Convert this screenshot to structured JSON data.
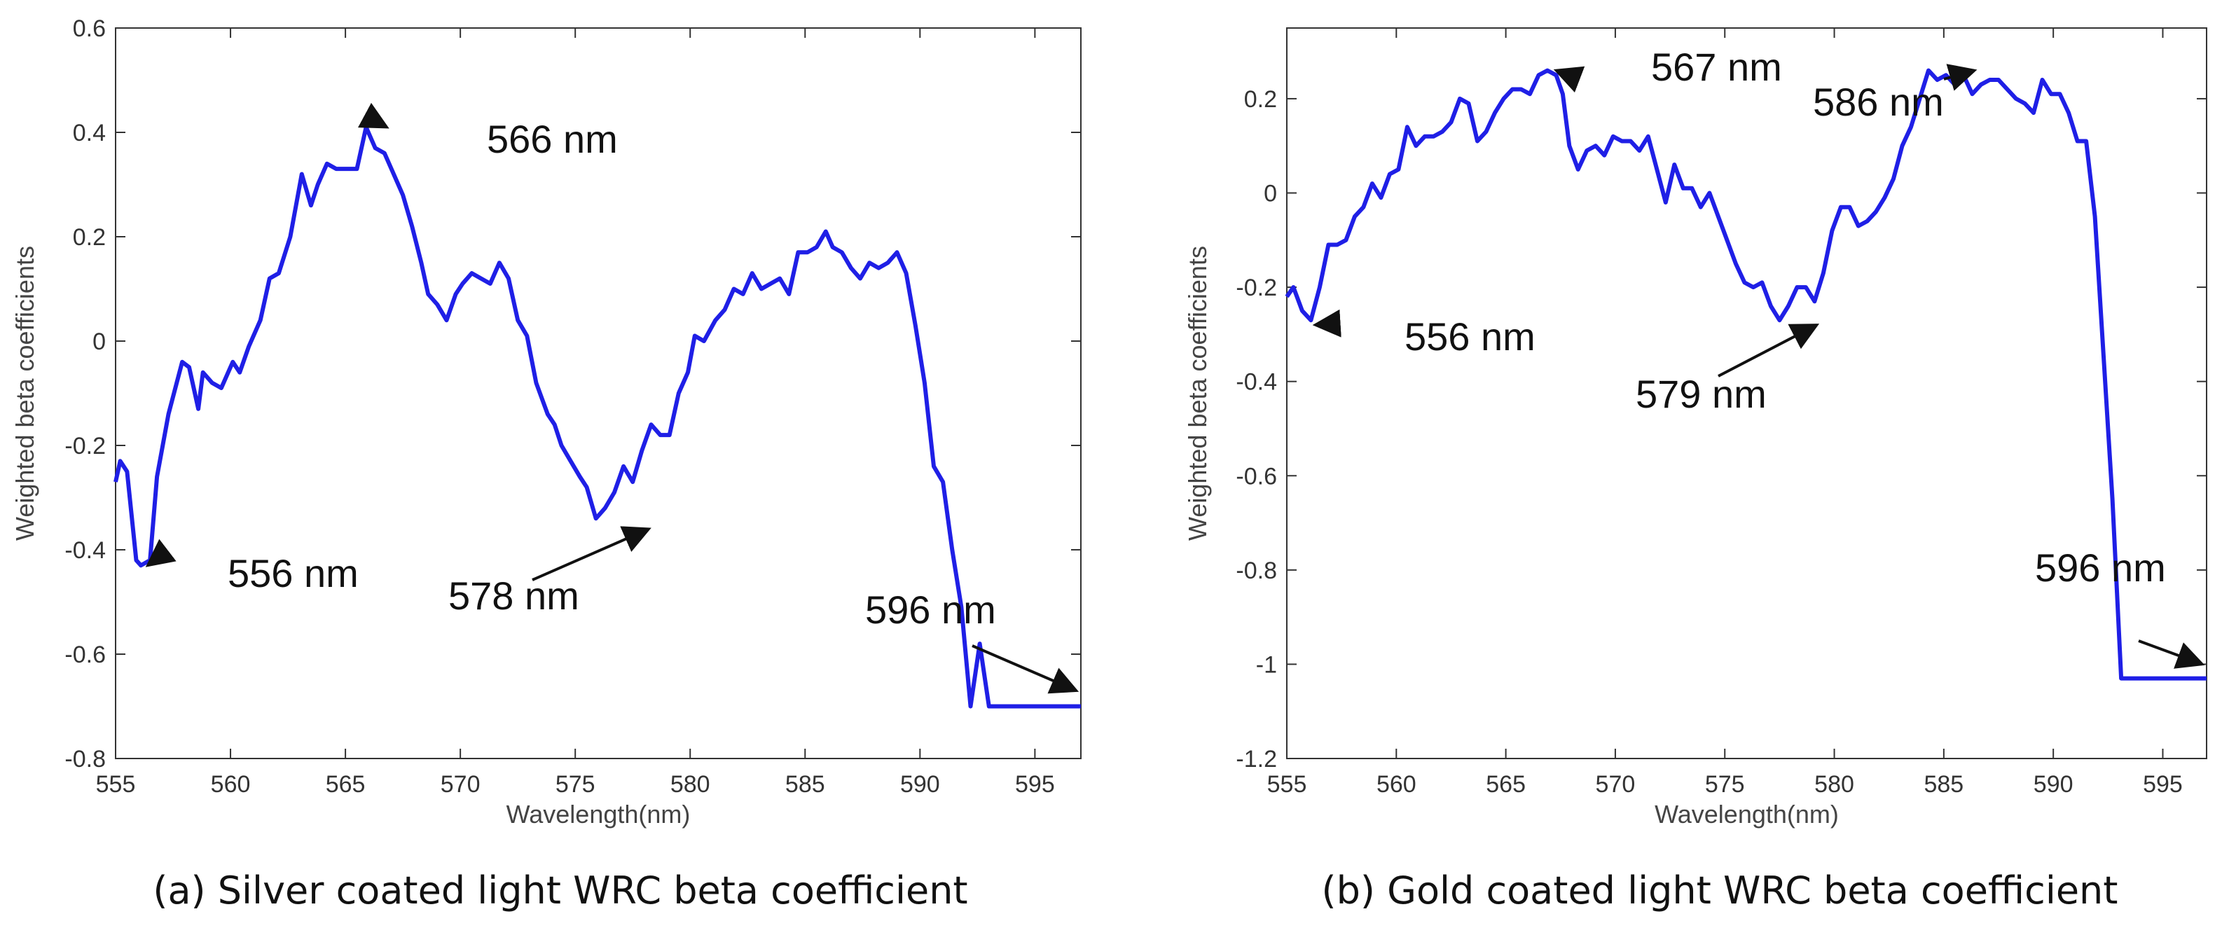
{
  "colors": {
    "line": "#1f1fe6",
    "axis": "#333333",
    "arrow": "#111111",
    "background": "#ffffff"
  },
  "chart_data": [
    {
      "type": "line",
      "caption": "(a) Silver coated light WRC beta coefficient",
      "xlabel": "Wavelength(nm)",
      "ylabel": "Weighted beta coefficients",
      "xlim": [
        555,
        597
      ],
      "ylim": [
        -0.8,
        0.6
      ],
      "xticks": [
        555,
        560,
        565,
        570,
        575,
        580,
        585,
        590,
        595
      ],
      "xtick_labels": [
        "555",
        "560",
        "565",
        "570",
        "575",
        "580",
        "585",
        "590",
        "595"
      ],
      "yticks": [
        -0.8,
        -0.6,
        -0.4,
        -0.2,
        0,
        0.2,
        0.4,
        0.6
      ],
      "ytick_labels": [
        "-0.8",
        "-0.6",
        "-0.4",
        "-0.2",
        "0",
        "0.2",
        "0.4",
        "0.6"
      ],
      "grid": false,
      "series": [
        {
          "name": "Silver coated",
          "x": [
            555,
            555.2,
            555.5,
            555.9,
            556.1,
            556.5,
            556.8,
            557.3,
            557.9,
            558.2,
            558.6,
            558.8,
            559.2,
            559.6,
            560.1,
            560.4,
            560.8,
            561.3,
            561.7,
            562.1,
            562.6,
            563.1,
            563.5,
            563.8,
            564.2,
            564.6,
            565.1,
            565.5,
            565.9,
            566.3,
            566.7,
            567.1,
            567.5,
            567.9,
            568.3,
            568.6,
            569.0,
            569.4,
            569.8,
            570.1,
            570.5,
            570.9,
            571.3,
            571.7,
            572.1,
            572.5,
            572.9,
            573.3,
            573.8,
            574.1,
            574.4,
            574.8,
            575.2,
            575.5,
            575.9,
            576.3,
            576.7,
            577.1,
            577.5,
            577.9,
            578.3,
            578.7,
            579.1,
            579.5,
            579.9,
            580.2,
            580.6,
            581.1,
            581.5,
            581.9,
            582.3,
            582.7,
            583.1,
            583.5,
            583.9,
            584.3,
            584.7,
            585.1,
            585.5,
            585.9,
            586.2,
            586.6,
            587.0,
            587.4,
            587.8,
            588.2,
            588.6,
            589.0,
            589.4,
            589.8,
            590.2,
            590.6,
            591.0,
            591.4,
            591.8,
            592.2,
            592.6,
            593.0,
            593.4,
            593.8,
            594.2,
            594.6,
            595.0,
            595.4,
            595.8,
            596.2,
            596.6,
            597.0
          ],
          "y": [
            -0.27,
            -0.23,
            -0.25,
            -0.42,
            -0.43,
            -0.42,
            -0.26,
            -0.14,
            -0.04,
            -0.05,
            -0.13,
            -0.06,
            -0.08,
            -0.09,
            -0.04,
            -0.06,
            -0.01,
            0.04,
            0.12,
            0.13,
            0.2,
            0.32,
            0.26,
            0.3,
            0.34,
            0.33,
            0.33,
            0.33,
            0.41,
            0.37,
            0.36,
            0.32,
            0.28,
            0.22,
            0.15,
            0.09,
            0.07,
            0.04,
            0.09,
            0.11,
            0.13,
            0.12,
            0.11,
            0.15,
            0.12,
            0.04,
            0.01,
            -0.08,
            -0.14,
            -0.16,
            -0.2,
            -0.23,
            -0.26,
            -0.28,
            -0.34,
            -0.32,
            -0.29,
            -0.24,
            -0.27,
            -0.21,
            -0.16,
            -0.18,
            -0.18,
            -0.1,
            -0.06,
            0.01,
            0.0,
            0.04,
            0.06,
            0.1,
            0.09,
            0.13,
            0.1,
            0.11,
            0.12,
            0.09,
            0.17,
            0.17,
            0.18,
            0.21,
            0.18,
            0.17,
            0.14,
            0.12,
            0.15,
            0.14,
            0.15,
            0.17,
            0.13,
            0.03,
            -0.08,
            -0.24,
            -0.27,
            -0.4,
            -0.51,
            -0.7,
            -0.58,
            -0.7,
            -0.7,
            -0.7,
            -0.7,
            -0.7,
            -0.7,
            -0.7,
            -0.7,
            -0.7,
            -0.7,
            -0.7
          ]
        }
      ],
      "annotations": [
        {
          "text": "566 nm",
          "x": 566.8,
          "y": 0.41
        },
        {
          "text": "556 nm",
          "x": 556.4,
          "y": -0.43
        },
        {
          "text": "578 nm",
          "x": 578.2,
          "y": -0.36
        },
        {
          "text": "596 nm",
          "x": 596.8,
          "y": -0.67
        }
      ]
    },
    {
      "type": "line",
      "caption": "(b) Gold coated light WRC beta coefficient",
      "xlabel": "Wavelength(nm)",
      "ylabel": "Weighted beta coefficients",
      "xlim": [
        555,
        597
      ],
      "ylim": [
        -1.2,
        0.35
      ],
      "xticks": [
        555,
        560,
        565,
        570,
        575,
        580,
        585,
        590,
        595
      ],
      "xtick_labels": [
        "555",
        "560",
        "565",
        "570",
        "575",
        "580",
        "585",
        "590",
        "595"
      ],
      "yticks": [
        -1.2,
        -1,
        -0.8,
        -0.6,
        -0.4,
        -0.2,
        0,
        0.2
      ],
      "ytick_labels": [
        "-1.2",
        "-1",
        "-0.8",
        "-0.6",
        "-0.4",
        "-0.2",
        "0",
        "0.2"
      ],
      "grid": false,
      "series": [
        {
          "name": "Gold coated",
          "x": [
            555,
            555.3,
            555.7,
            556.1,
            556.5,
            556.9,
            557.3,
            557.7,
            558.1,
            558.5,
            558.9,
            559.3,
            559.7,
            560.1,
            560.5,
            560.9,
            561.3,
            561.7,
            562.1,
            562.5,
            562.9,
            563.3,
            563.7,
            564.1,
            564.5,
            564.9,
            565.3,
            565.7,
            566.1,
            566.5,
            566.9,
            567.3,
            567.6,
            567.9,
            568.3,
            568.7,
            569.1,
            569.5,
            569.9,
            570.3,
            570.7,
            571.1,
            571.5,
            571.9,
            572.3,
            572.7,
            573.1,
            573.5,
            573.9,
            574.3,
            574.7,
            575.1,
            575.5,
            575.9,
            576.3,
            576.7,
            577.1,
            577.5,
            577.9,
            578.3,
            578.7,
            579.1,
            579.5,
            579.9,
            580.3,
            580.7,
            581.1,
            581.5,
            581.9,
            582.3,
            582.7,
            583.1,
            583.5,
            583.9,
            584.3,
            584.7,
            585.1,
            585.5,
            585.9,
            586.3,
            586.7,
            587.1,
            587.5,
            587.9,
            588.3,
            588.7,
            589.1,
            589.5,
            589.9,
            590.3,
            590.7,
            591.1,
            591.5,
            591.9,
            592.3,
            592.7,
            593.1,
            593.5,
            593.9,
            594.3,
            594.7,
            595.1,
            595.5,
            595.9,
            596.3,
            596.7,
            597.0
          ],
          "y": [
            -0.22,
            -0.2,
            -0.25,
            -0.27,
            -0.2,
            -0.11,
            -0.11,
            -0.1,
            -0.05,
            -0.03,
            0.02,
            -0.01,
            0.04,
            0.05,
            0.14,
            0.1,
            0.12,
            0.12,
            0.13,
            0.15,
            0.2,
            0.19,
            0.11,
            0.13,
            0.17,
            0.2,
            0.22,
            0.22,
            0.21,
            0.25,
            0.26,
            0.25,
            0.21,
            0.1,
            0.05,
            0.09,
            0.1,
            0.08,
            0.12,
            0.11,
            0.11,
            0.09,
            0.12,
            0.05,
            -0.02,
            0.06,
            0.01,
            0.01,
            -0.03,
            0.0,
            -0.05,
            -0.1,
            -0.15,
            -0.19,
            -0.2,
            -0.19,
            -0.24,
            -0.27,
            -0.24,
            -0.2,
            -0.2,
            -0.23,
            -0.17,
            -0.08,
            -0.03,
            -0.03,
            -0.07,
            -0.06,
            -0.04,
            -0.01,
            0.03,
            0.1,
            0.14,
            0.2,
            0.26,
            0.24,
            0.25,
            0.23,
            0.25,
            0.21,
            0.23,
            0.24,
            0.24,
            0.22,
            0.2,
            0.19,
            0.17,
            0.24,
            0.21,
            0.21,
            0.17,
            0.11,
            0.11,
            -0.05,
            -0.35,
            -0.65,
            -1.03,
            -1.03,
            -1.03,
            -1.03,
            -1.03,
            -1.03,
            -1.03,
            -1.03,
            -1.03,
            -1.03,
            -1.03
          ],
          "comment": ""
        }
      ],
      "annotations": [
        {
          "text": "567 nm",
          "x": 567.3,
          "y": 0.26
        },
        {
          "text": "586 nm",
          "x": 586.4,
          "y": 0.26
        },
        {
          "text": "556 nm",
          "x": 556.3,
          "y": -0.28
        },
        {
          "text": "579 nm",
          "x": 579.2,
          "y": -0.28
        },
        {
          "text": "596 nm",
          "x": 596.8,
          "y": -1.0
        }
      ]
    }
  ]
}
